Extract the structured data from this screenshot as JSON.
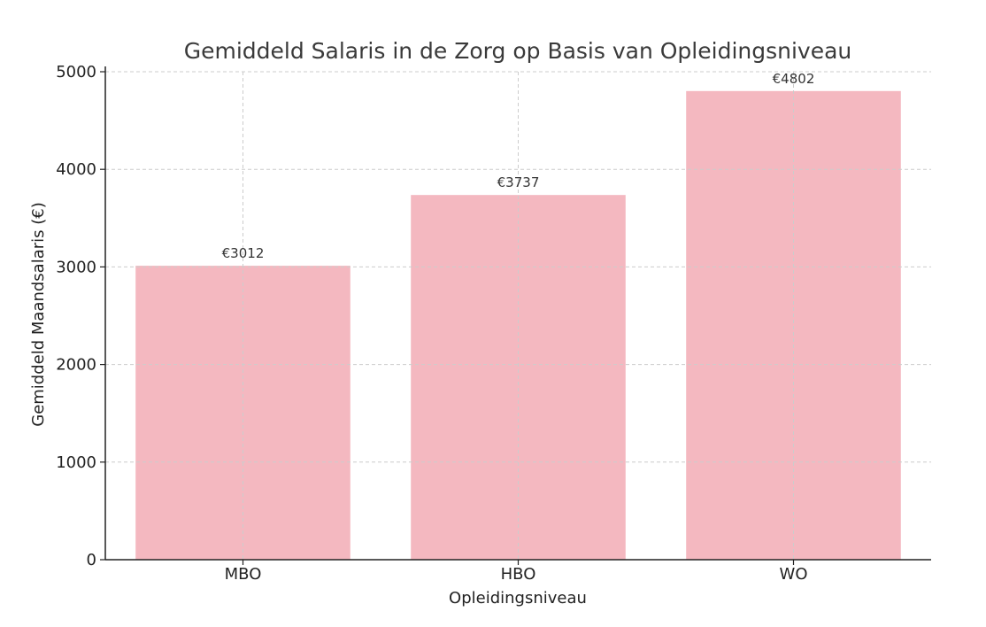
{
  "chart_data": {
    "type": "bar",
    "title": "Gemiddeld Salaris in de Zorg op Basis van Opleidingsniveau",
    "xlabel": "Opleidingsniveau",
    "ylabel": "Gemiddeld Maandsalaris (€)",
    "categories": [
      "MBO",
      "HBO",
      "WO"
    ],
    "values": [
      3012,
      3737,
      4802
    ],
    "value_labels": [
      "€3012",
      "€3737",
      "€4802"
    ],
    "ylim": [
      0,
      5000
    ],
    "yticks": [
      0,
      1000,
      2000,
      3000,
      4000,
      5000
    ],
    "ytick_labels": [
      "0",
      "1000",
      "2000",
      "3000",
      "4000",
      "5000"
    ],
    "grid": true,
    "legend": "none",
    "bar_color": "#f4b8c0"
  }
}
